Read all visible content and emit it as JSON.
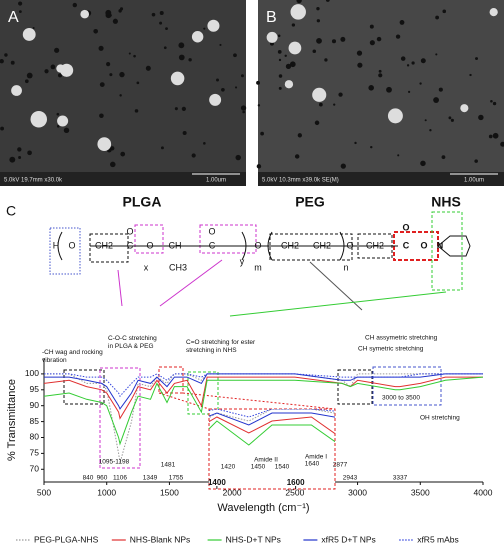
{
  "panels": {
    "labels": [
      "A",
      "B",
      "C"
    ],
    "a_info": "5.0kV 19.7mm x30.0k",
    "a_scale": "1.00um",
    "b_info": "5.0kV 10.3mm x39.0k SE(M)",
    "b_scale": "1.00um"
  },
  "structure": {
    "labels": [
      "PLGA",
      "PEG",
      "NHS"
    ],
    "atoms": [
      "H",
      "O",
      "CH2",
      "C",
      "O",
      "x",
      "O",
      "CH",
      "CH3",
      "C",
      "O",
      "y",
      "m",
      "O",
      "CH2",
      "CH2",
      "O",
      "n",
      "CH2",
      "C",
      "O",
      "O",
      "N"
    ]
  },
  "chart_data": {
    "type": "line",
    "x_label": "Wavelength (cm⁻¹)",
    "y_label": "% Transmittance",
    "x": [
      500,
      700,
      840,
      960,
      1000,
      1095,
      1106,
      1198,
      1250,
      1349,
      1400,
      1481,
      1540,
      1640,
      1755,
      1800,
      2000,
      2500,
      2877,
      2943,
      3000,
      3300,
      3337,
      3500,
      3700,
      4000
    ],
    "series": [
      {
        "name": "PEG-PLGA-NHS",
        "color": "#9a9a9a",
        "dash": "1.5 1.5",
        "values": [
          100,
          100,
          97,
          97,
          95,
          75,
          72,
          85,
          97,
          96,
          99,
          97,
          100,
          100,
          98,
          100,
          100,
          100,
          98,
          96,
          100,
          100,
          100,
          100,
          100,
          100
        ]
      },
      {
        "name": "NHS-Blank NPs",
        "color": "#e03030",
        "values": [
          97,
          98,
          96,
          95,
          94,
          88,
          86,
          92,
          96,
          95,
          98,
          94,
          97,
          98,
          90,
          99,
          99,
          99,
          97,
          96,
          98,
          96,
          96,
          97,
          99,
          99
        ]
      },
      {
        "name": "NHS-D+T NPs",
        "color": "#33cc33",
        "values": [
          93,
          94,
          92,
          91,
          90,
          80,
          78,
          88,
          93,
          92,
          97,
          91,
          96,
          96,
          88,
          98,
          98,
          98,
          97,
          96,
          97,
          95,
          95,
          96,
          98,
          99
        ]
      },
      {
        "name": "xfR5 D+T NPs",
        "color": "#2233cc",
        "values": [
          99,
          99,
          98,
          97,
          96,
          90,
          89,
          94,
          98,
          97,
          99,
          96,
          99,
          99,
          97,
          100,
          100,
          100,
          98,
          98,
          99,
          99,
          99,
          99,
          100,
          100
        ]
      },
      {
        "name": "xfR5 mAbs",
        "color": "#3344dd",
        "dash": "1.5 1.5",
        "values": [
          100,
          100,
          99,
          99,
          98,
          94,
          93,
          97,
          99,
          99,
          100,
          98,
          100,
          100,
          99,
          100,
          100,
          100,
          99,
          99,
          99,
          99,
          99,
          100,
          100,
          100
        ]
      }
    ],
    "xlim": [
      500,
      4000
    ],
    "xticks": [
      500,
      1000,
      1500,
      2000,
      2500,
      3000,
      3500,
      4000
    ],
    "ylim": [
      66,
      105
    ],
    "yticks": [
      70,
      75,
      80,
      85,
      90,
      95,
      100
    ],
    "inset": {
      "xlim": [
        1380,
        1700
      ],
      "ylim": [
        80,
        100
      ],
      "xticks": [
        1400,
        1600
      ]
    },
    "annotations": [
      "-CH wag and rocking vibration",
      "C-O-C stretching in PLGA & PEG",
      "C=O stretching for ester stretching in NHS",
      "CH assymetric stretching",
      "CH symetric stretching",
      "3000 to 3500",
      "OH stretching",
      "840",
      "960",
      "1095-1198",
      "1106",
      "1349",
      "1481",
      "1755",
      "2877",
      "2943",
      "3337",
      "1420",
      "1450",
      "1540",
      "1640",
      "Amide II",
      "Amide I"
    ]
  }
}
